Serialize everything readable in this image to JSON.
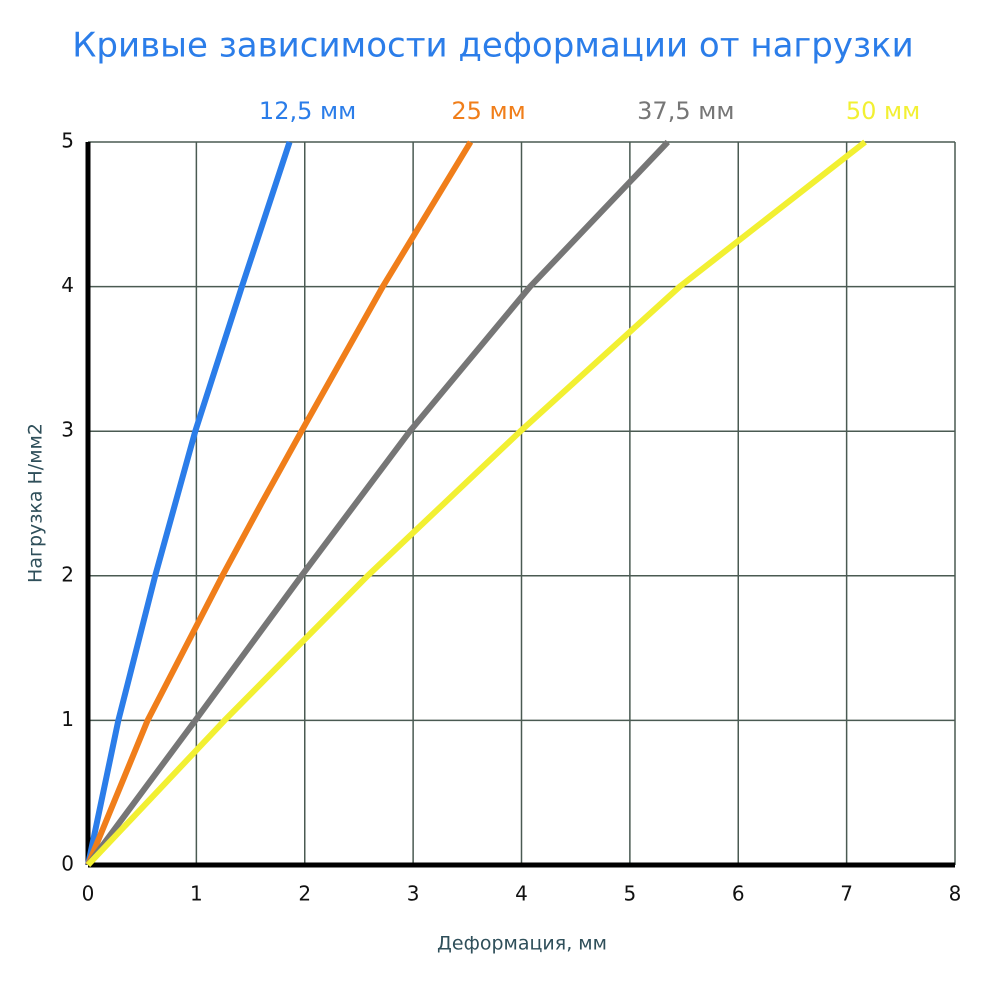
{
  "chart_data": {
    "type": "line",
    "title": "Кривые зависимости деформации от нагрузки",
    "x_label": "Деформация, мм",
    "y_label": "Нагрузка Н/мм2",
    "xlim": [
      0,
      8
    ],
    "xticks": [
      0,
      1,
      2,
      3,
      4,
      5,
      6,
      7,
      8
    ],
    "ylim": [
      0,
      5
    ],
    "yticks": [
      0,
      1,
      2,
      3,
      4,
      5
    ],
    "grid": true,
    "series": [
      {
        "name": "12,5 мм",
        "color": "#2b7de9",
        "x": [
          0,
          0.28,
          0.62,
          0.99,
          1.42,
          1.86
        ],
        "values": [
          0,
          1,
          2,
          3,
          4,
          5
        ]
      },
      {
        "name": "25 мм",
        "color": "#f07e1a",
        "x": [
          0,
          0.55,
          1.24,
          1.6,
          1.97,
          2.72,
          3.53
        ],
        "values": [
          0,
          1,
          2,
          2.5,
          3,
          4,
          5
        ]
      },
      {
        "name": "37,5 мм",
        "color": "#767676",
        "x": [
          0,
          0.99,
          1.97,
          2.97,
          4.08,
          5.35
        ],
        "values": [
          0,
          1,
          2,
          3,
          4,
          5
        ]
      },
      {
        "name": "50 мм",
        "color": "#f2f032",
        "x": [
          0,
          1.26,
          2.58,
          3.99,
          5.46,
          7.17
        ],
        "values": [
          0,
          1,
          2,
          3,
          4,
          5
        ]
      }
    ]
  }
}
